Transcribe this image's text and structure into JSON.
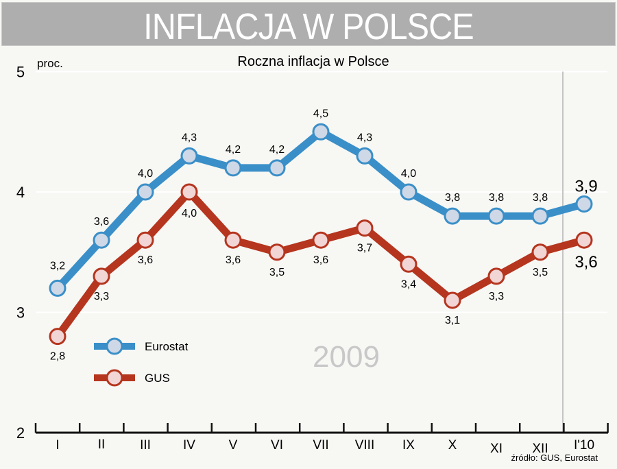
{
  "banner": {
    "title": "INFLACJA W POLSCE"
  },
  "chart_data": {
    "type": "line",
    "title": "Roczna inflacja w Polsce",
    "ylabel": "proc.",
    "ylim": [
      2,
      5
    ],
    "yticks": [
      "2",
      "3",
      "4",
      "5"
    ],
    "categories": [
      "I",
      "II",
      "III",
      "IV",
      "V",
      "VI",
      "VII",
      "VIII",
      "IX",
      "X",
      "XI",
      "XII",
      "I'10"
    ],
    "series": [
      {
        "name": "Eurostat",
        "color": "#3a8fc8",
        "marker": "#cfd8e6",
        "values": [
          3.2,
          3.6,
          4.0,
          4.3,
          4.2,
          4.2,
          4.5,
          4.3,
          4.0,
          3.8,
          3.8,
          3.8,
          3.9
        ],
        "labels": [
          "3,2",
          "3,6",
          "4,0",
          "4,3",
          "4,2",
          "4,2",
          "4,5",
          "4,3",
          "4,0",
          "3,8",
          "3,8",
          "3,8",
          "3,9"
        ]
      },
      {
        "name": "GUS",
        "color": "#b5351e",
        "marker": "#f2d5d5",
        "values": [
          2.8,
          3.3,
          3.6,
          4.0,
          3.6,
          3.5,
          3.6,
          3.7,
          3.4,
          3.1,
          3.3,
          3.5,
          3.6
        ],
        "labels": [
          "2,8",
          "3,3",
          "3,6",
          "4,0",
          "3,6",
          "3,5",
          "3,6",
          "3,7",
          "3,4",
          "3,1",
          "3,3",
          "3,5",
          "3,6"
        ]
      }
    ],
    "annotation": "2009",
    "source": "źródło: GUS, Eurostat",
    "legend": "bottom-left",
    "grid": true
  }
}
